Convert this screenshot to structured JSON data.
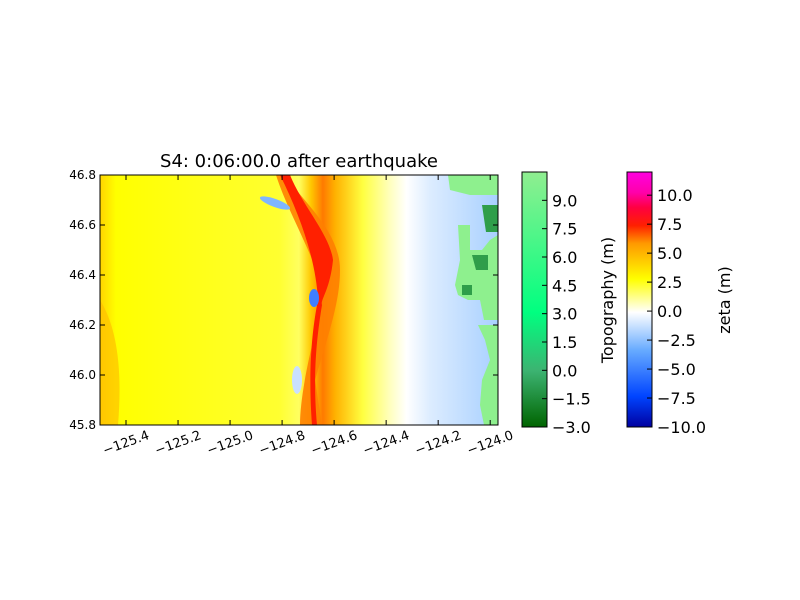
{
  "chart_data": {
    "type": "heatmap",
    "title": "S4: 0:06:00.0 after earthquake",
    "xlabel": "",
    "ylabel": "",
    "xlim": [
      -125.5,
      -123.97
    ],
    "ylim": [
      45.8,
      46.8
    ],
    "xticks": [
      -125.4,
      -125.2,
      -125.0,
      -124.8,
      -124.6,
      -124.4,
      -124.2,
      -124.0
    ],
    "xtick_labels": [
      "−125.4",
      "−125.2",
      "−125.0",
      "−124.8",
      "−124.6",
      "−124.4",
      "−124.2",
      "−124.0"
    ],
    "yticks": [
      45.8,
      46.0,
      46.2,
      46.4,
      46.6,
      46.8
    ],
    "ytick_labels": [
      "45.8",
      "46.0",
      "46.2",
      "46.4",
      "46.6",
      "46.8"
    ],
    "colorbars": [
      {
        "label": "Topography (m)",
        "range": [
          -3.0,
          10.5
        ],
        "ticks": [
          -3.0,
          -1.5,
          0.0,
          1.5,
          3.0,
          4.5,
          6.0,
          7.5,
          9.0
        ],
        "tick_labels": [
          "−3.0",
          "−1.5",
          "0.0",
          "1.5",
          "3.0",
          "4.5",
          "6.0",
          "7.5",
          "9.0"
        ],
        "colors": [
          "#006400",
          "#3cb371",
          "#00ff80",
          "#90ee90"
        ]
      },
      {
        "label": "zeta (m)",
        "range": [
          -10.0,
          12.0
        ],
        "ticks": [
          -10.0,
          -7.5,
          -5.0,
          -2.5,
          0.0,
          2.5,
          5.0,
          7.5,
          10.0
        ],
        "tick_labels": [
          "−10.0",
          "−7.5",
          "−5.0",
          "−2.5",
          "0.0",
          "2.5",
          "5.0",
          "7.5",
          "10.0"
        ],
        "colors": [
          "#0000a0",
          "#0055ff",
          "#66aaff",
          "#ffffff",
          "#ffff00",
          "#ffbb00",
          "#ff4400",
          "#ff0040",
          "#ff00c8"
        ]
      }
    ],
    "field_description_values": {
      "wave_front_max_zeta": 8.0,
      "offshore_background_zeta": 2.5,
      "nearshore_zeta": -1.5
    }
  }
}
